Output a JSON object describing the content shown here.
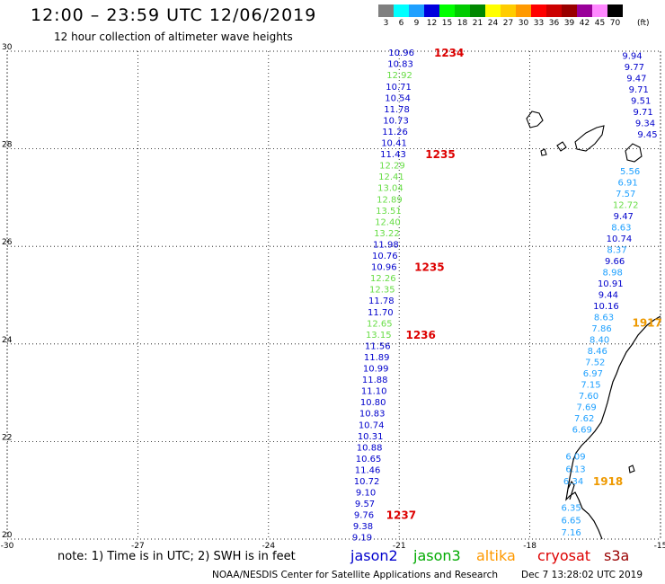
{
  "header": {
    "title": "12:00 – 23:59 UTC 12/06/2019",
    "subtitle": "12 hour collection of altimeter wave heights"
  },
  "legend": {
    "unit": "(ft)",
    "items": [
      {
        "label": "3",
        "color": "#7f7f7f"
      },
      {
        "label": "6",
        "color": "#00ffff"
      },
      {
        "label": "9",
        "color": "#1ea0ff"
      },
      {
        "label": "12",
        "color": "#0000dd"
      },
      {
        "label": "15",
        "color": "#00ff00"
      },
      {
        "label": "18",
        "color": "#00cc00"
      },
      {
        "label": "21",
        "color": "#008800"
      },
      {
        "label": "24",
        "color": "#ffff00"
      },
      {
        "label": "27",
        "color": "#ffcc00"
      },
      {
        "label": "30",
        "color": "#ff9900"
      },
      {
        "label": "33",
        "color": "#ff0000"
      },
      {
        "label": "36",
        "color": "#cc0000"
      },
      {
        "label": "39",
        "color": "#990000"
      },
      {
        "label": "42",
        "color": "#990099"
      },
      {
        "label": "45",
        "color": "#ff88ff"
      },
      {
        "label": "70",
        "color": "#000000"
      }
    ]
  },
  "map": {
    "lat_labels": [
      "30",
      "28",
      "26",
      "24",
      "22",
      "20"
    ],
    "lon_labels": [
      "-30",
      "-27",
      "-24",
      "-21",
      "-18",
      "-15"
    ],
    "lat_range": [
      20,
      30
    ],
    "lon_range": [
      -30,
      -15
    ],
    "grid": "dotted",
    "track_left": [
      {
        "v": "10.96",
        "c": "#0000cc",
        "lat": 29.98
      },
      {
        "v": "10.83",
        "c": "#0000cc",
        "lat": 29.75
      },
      {
        "v": "12.92",
        "c": "#66dd44",
        "lat": 29.52
      },
      {
        "v": "10.71",
        "c": "#0000cc",
        "lat": 29.28
      },
      {
        "v": "10.54",
        "c": "#0000cc",
        "lat": 29.05
      },
      {
        "v": "11.78",
        "c": "#0000cc",
        "lat": 28.82
      },
      {
        "v": "10.73",
        "c": "#0000cc",
        "lat": 28.59
      },
      {
        "v": "11.26",
        "c": "#0000cc",
        "lat": 28.36
      },
      {
        "v": "10.41",
        "c": "#0000cc",
        "lat": 28.13
      },
      {
        "v": "11.43",
        "c": "#0000cc",
        "lat": 27.9
      },
      {
        "v": "12.29",
        "c": "#66dd44",
        "lat": 27.67
      },
      {
        "v": "12.41",
        "c": "#66dd44",
        "lat": 27.44
      },
      {
        "v": "13.04",
        "c": "#66dd44",
        "lat": 27.21
      },
      {
        "v": "12.89",
        "c": "#66dd44",
        "lat": 26.97
      },
      {
        "v": "13.51",
        "c": "#66dd44",
        "lat": 26.74
      },
      {
        "v": "12.40",
        "c": "#66dd44",
        "lat": 26.51
      },
      {
        "v": "13.22",
        "c": "#66dd44",
        "lat": 26.28
      },
      {
        "v": "11.98",
        "c": "#0000cc",
        "lat": 26.05
      },
      {
        "v": "10.76",
        "c": "#0000cc",
        "lat": 25.82
      },
      {
        "v": "10.96",
        "c": "#0000cc",
        "lat": 25.59
      },
      {
        "v": "12.26",
        "c": "#66dd44",
        "lat": 25.36
      },
      {
        "v": "12.35",
        "c": "#66dd44",
        "lat": 25.13
      },
      {
        "v": "11.78",
        "c": "#0000cc",
        "lat": 24.9
      },
      {
        "v": "11.70",
        "c": "#0000cc",
        "lat": 24.66
      },
      {
        "v": "12.65",
        "c": "#66dd44",
        "lat": 24.43
      },
      {
        "v": "13.15",
        "c": "#66dd44",
        "lat": 24.2
      },
      {
        "v": "11.56",
        "c": "#0000cc",
        "lat": 23.97
      },
      {
        "v": "11.89",
        "c": "#0000cc",
        "lat": 23.74
      },
      {
        "v": "10.99",
        "c": "#0000cc",
        "lat": 23.51
      },
      {
        "v": "11.88",
        "c": "#0000cc",
        "lat": 23.28
      },
      {
        "v": "11.10",
        "c": "#0000cc",
        "lat": 23.05
      },
      {
        "v": "10.80",
        "c": "#0000cc",
        "lat": 22.82
      },
      {
        "v": "10.83",
        "c": "#0000cc",
        "lat": 22.59
      },
      {
        "v": "10.74",
        "c": "#0000cc",
        "lat": 22.35
      },
      {
        "v": "10.31",
        "c": "#0000cc",
        "lat": 22.12
      },
      {
        "v": "10.88",
        "c": "#0000cc",
        "lat": 21.89
      },
      {
        "v": "10.65",
        "c": "#0000cc",
        "lat": 21.66
      },
      {
        "v": "11.46",
        "c": "#0000cc",
        "lat": 21.43
      },
      {
        "v": "10.72",
        "c": "#0000cc",
        "lat": 21.2
      },
      {
        "v": "9.10",
        "c": "#0000cc",
        "lat": 20.97
      },
      {
        "v": "9.57",
        "c": "#0000cc",
        "lat": 20.74
      },
      {
        "v": "9.76",
        "c": "#0000cc",
        "lat": 20.51
      },
      {
        "v": "9.38",
        "c": "#0000cc",
        "lat": 20.28
      },
      {
        "v": "9.19",
        "c": "#0000cc",
        "lat": 20.05
      }
    ],
    "track_left_start_lon": -20.95,
    "track_left_end_lon": -21.85,
    "pass_labels": [
      {
        "text": "1234",
        "lat": 29.98,
        "lon": -20.2,
        "c": "#dd0000"
      },
      {
        "text": "1235",
        "lat": 27.9,
        "lon": -20.4,
        "c": "#dd0000"
      },
      {
        "text": "1235",
        "lat": 25.59,
        "lon": -20.65,
        "c": "#dd0000"
      },
      {
        "text": "1236",
        "lat": 24.2,
        "lon": -20.85,
        "c": "#dd0000"
      },
      {
        "text": "1237",
        "lat": 20.51,
        "lon": -21.3,
        "c": "#dd0000"
      },
      {
        "text": "1917",
        "lat": 24.45,
        "lon": -15.65,
        "c": "#ee9900"
      },
      {
        "text": "1918",
        "lat": 21.2,
        "lon": -16.55,
        "c": "#ee9900"
      }
    ],
    "track_right": [
      {
        "v": "9.94",
        "c": "#0000cc",
        "lat": 29.92,
        "lon": -15.65
      },
      {
        "v": "9.77",
        "c": "#0000cc",
        "lat": 29.69,
        "lon": -15.6
      },
      {
        "v": "9.47",
        "c": "#0000cc",
        "lat": 29.46,
        "lon": -15.55
      },
      {
        "v": "9.71",
        "c": "#0000cc",
        "lat": 29.23,
        "lon": -15.5
      },
      {
        "v": "9.51",
        "c": "#0000cc",
        "lat": 29.0,
        "lon": -15.45
      },
      {
        "v": "9.71",
        "c": "#0000cc",
        "lat": 28.77,
        "lon": -15.4
      },
      {
        "v": "9.34",
        "c": "#0000cc",
        "lat": 28.54,
        "lon": -15.35
      },
      {
        "v": "9.45",
        "c": "#0000cc",
        "lat": 28.31,
        "lon": -15.3
      },
      {
        "v": "5.56",
        "c": "#1ea0ff",
        "lat": 27.55,
        "lon": -15.7
      },
      {
        "v": "6.91",
        "c": "#1ea0ff",
        "lat": 27.32,
        "lon": -15.75
      },
      {
        "v": "7.57",
        "c": "#1ea0ff",
        "lat": 27.09,
        "lon": -15.8
      },
      {
        "v": "12.72",
        "c": "#66dd44",
        "lat": 26.86,
        "lon": -15.8
      },
      {
        "v": "9.47",
        "c": "#0000cc",
        "lat": 26.63,
        "lon": -15.85
      },
      {
        "v": "8.63",
        "c": "#1ea0ff",
        "lat": 26.4,
        "lon": -15.9
      },
      {
        "v": "10.74",
        "c": "#0000cc",
        "lat": 26.17,
        "lon": -15.95
      },
      {
        "v": "8.37",
        "c": "#1ea0ff",
        "lat": 25.94,
        "lon": -16.0
      },
      {
        "v": "9.66",
        "c": "#0000cc",
        "lat": 25.71,
        "lon": -16.05
      },
      {
        "v": "8.98",
        "c": "#1ea0ff",
        "lat": 25.48,
        "lon": -16.1
      },
      {
        "v": "10.91",
        "c": "#0000cc",
        "lat": 25.25,
        "lon": -16.15
      },
      {
        "v": "9.44",
        "c": "#0000cc",
        "lat": 25.02,
        "lon": -16.2
      },
      {
        "v": "10.16",
        "c": "#0000cc",
        "lat": 24.79,
        "lon": -16.25
      },
      {
        "v": "8.63",
        "c": "#1ea0ff",
        "lat": 24.56,
        "lon": -16.3
      },
      {
        "v": "7.86",
        "c": "#1ea0ff",
        "lat": 24.33,
        "lon": -16.35
      },
      {
        "v": "8.40",
        "c": "#1ea0ff",
        "lat": 24.1,
        "lon": -16.4
      },
      {
        "v": "8.46",
        "c": "#1ea0ff",
        "lat": 23.87,
        "lon": -16.45
      },
      {
        "v": "7.52",
        "c": "#1ea0ff",
        "lat": 23.64,
        "lon": -16.5
      },
      {
        "v": "6.97",
        "c": "#1ea0ff",
        "lat": 23.41,
        "lon": -16.55
      },
      {
        "v": "7.15",
        "c": "#1ea0ff",
        "lat": 23.18,
        "lon": -16.6
      },
      {
        "v": "7.60",
        "c": "#1ea0ff",
        "lat": 22.95,
        "lon": -16.65
      },
      {
        "v": "7.69",
        "c": "#1ea0ff",
        "lat": 22.72,
        "lon": -16.7
      },
      {
        "v": "7.62",
        "c": "#1ea0ff",
        "lat": 22.49,
        "lon": -16.75
      },
      {
        "v": "6.69",
        "c": "#1ea0ff",
        "lat": 22.26,
        "lon": -16.8
      },
      {
        "v": "6.09",
        "c": "#1ea0ff",
        "lat": 21.7,
        "lon": -16.95
      },
      {
        "v": "6.13",
        "c": "#1ea0ff",
        "lat": 21.45,
        "lon": -16.95
      },
      {
        "v": "6.34",
        "c": "#1ea0ff",
        "lat": 21.2,
        "lon": -17.0
      },
      {
        "v": "6.35",
        "c": "#1ea0ff",
        "lat": 20.65,
        "lon": -17.05
      },
      {
        "v": "6.65",
        "c": "#1ea0ff",
        "lat": 20.4,
        "lon": -17.05
      },
      {
        "v": "7.16",
        "c": "#1ea0ff",
        "lat": 20.15,
        "lon": -17.05
      }
    ]
  },
  "footer": {
    "note": "note: 1) Time is in UTC; 2) SWH is in feet",
    "satellites": [
      {
        "name": "jason2",
        "color": "#0000cc"
      },
      {
        "name": "jason3",
        "color": "#00aa00"
      },
      {
        "name": "altika",
        "color": "#ff9900"
      },
      {
        "name": "cryosat",
        "color": "#dd0000"
      },
      {
        "name": "s3a",
        "color": "#990000"
      }
    ],
    "credit": "NOAA/NESDIS Center for Satellite Applications and Research",
    "timestamp": "Dec  7 13:28:02 UTC 2019"
  }
}
